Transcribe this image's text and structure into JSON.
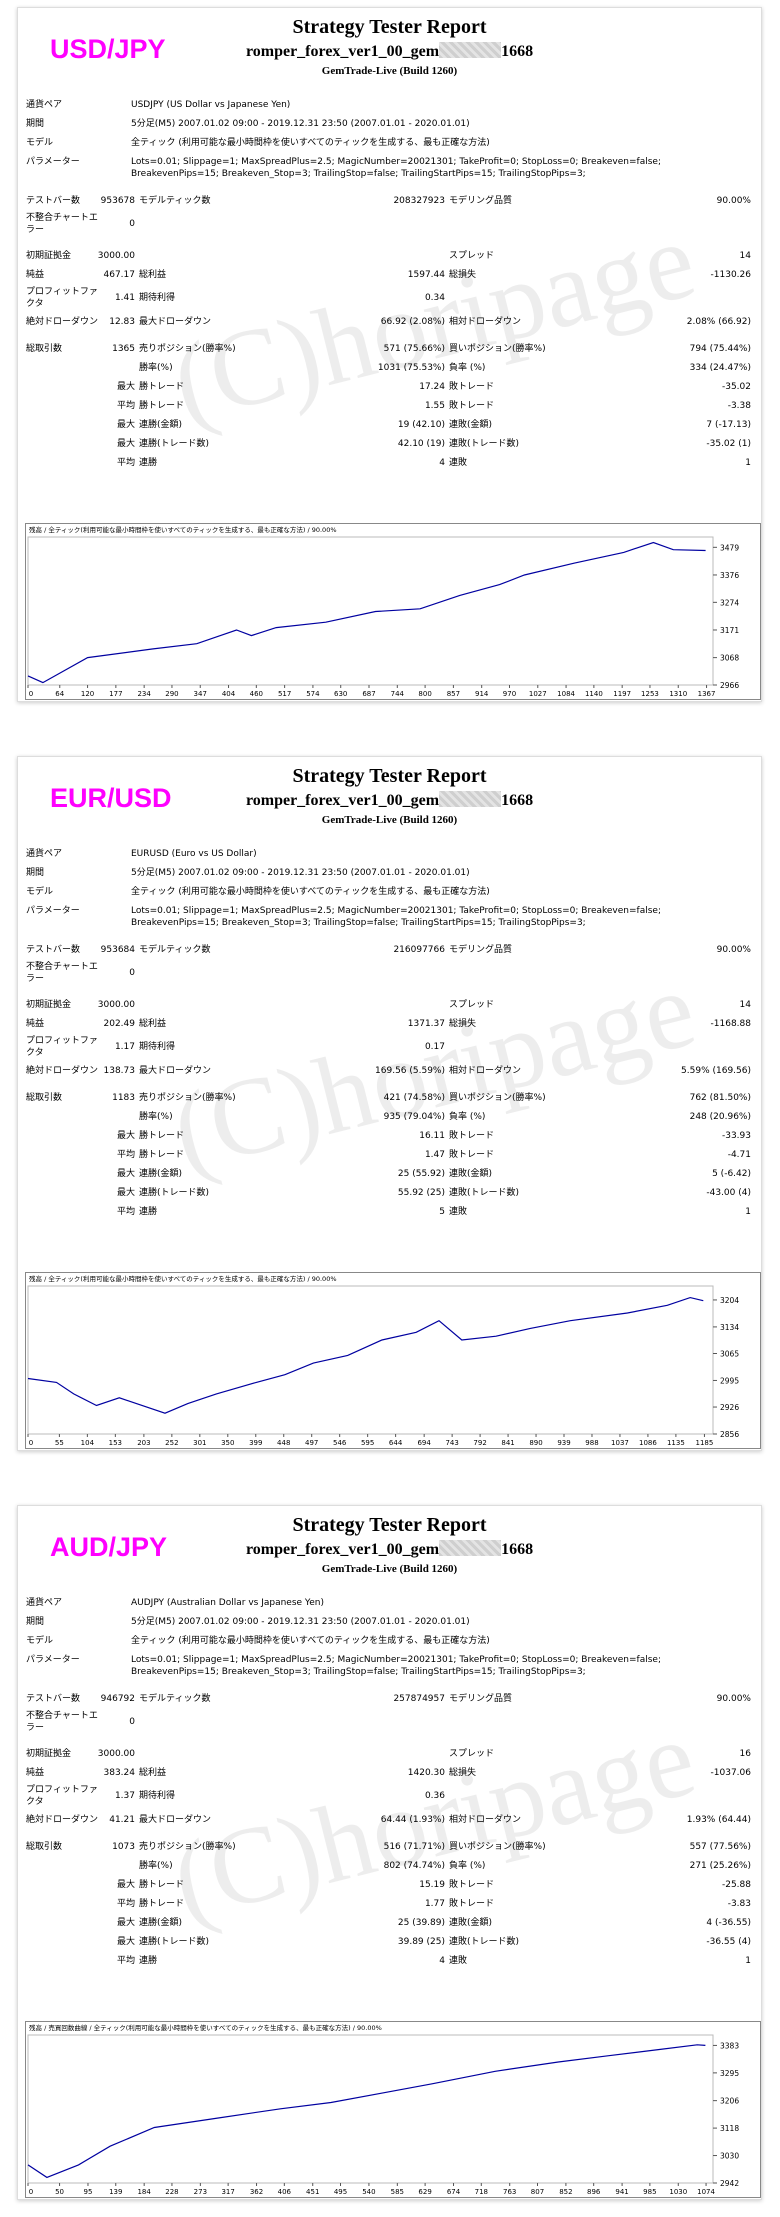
{
  "reports": [
    {
      "pair": "USD/JPY",
      "title": "Strategy Tester Report",
      "name_prefix": "romper_forex_ver1_00_gem",
      "name_suffix": "1668",
      "server": "GemTrade-Live (Build 1260)",
      "watermark": "(C)horipage",
      "info_rows": [
        [
          "通貨ペア",
          "USDJPY (US Dollar vs Japanese Yen)"
        ],
        [
          "期間",
          "5分足(M5) 2007.01.02 09:00 - 2019.12.31 23:50 (2007.01.01 - 2020.01.01)"
        ],
        [
          "モデル",
          "全ティック (利用可能な最小時間枠を使いすべてのティックを生成する、最も正確な方法)"
        ],
        [
          "パラメーター",
          "Lots=0.01; Slippage=1; MaxSpreadPlus=2.5; MagicNumber=20021301; TakeProfit=0; StopLoss=0; Breakeven=false; BreakevenPips=15; Breakeven_Stop=3; TrailingStop=false; TrailingStartPips=15; TrailingStopPips=3;"
        ]
      ],
      "stat_rows": [
        [
          "テストバー数",
          "953678",
          "モデルティック数",
          "208327923",
          "モデリング品質",
          "90.00%"
        ],
        [
          "不整合チャートエラー",
          "0",
          null,
          null,
          null,
          null
        ],
        [
          "初期証拠金",
          "3000.00",
          null,
          null,
          "スプレッド",
          "14"
        ],
        [
          "純益",
          "467.17",
          "総利益",
          "1597.44",
          "総損失",
          "-1130.26"
        ],
        [
          "プロフィットファクタ",
          "1.41",
          "期待利得",
          "0.34",
          null,
          null
        ],
        [
          "絶対ドローダウン",
          "12.83",
          "最大ドローダウン",
          "66.92 (2.08%)",
          "相対ドローダウン",
          "2.08% (66.92)"
        ],
        [
          "総取引数",
          "1365",
          "売りポジション(勝率%)",
          "571 (75.66%)",
          "買いポジション(勝率%)",
          "794 (75.44%)"
        ],
        [
          null,
          null,
          "勝率(%)",
          "1031 (75.53%)",
          "負率 (%)",
          "334 (24.47%)"
        ],
        [
          null,
          "最大",
          "勝トレード",
          "17.24",
          "敗トレード",
          "-35.02"
        ],
        [
          null,
          "平均",
          "勝トレード",
          "1.55",
          "敗トレード",
          "-3.38"
        ],
        [
          null,
          "最大",
          "連勝(金額)",
          "19 (42.10)",
          "連敗(金額)",
          "7 (-17.13)"
        ],
        [
          null,
          "最大",
          "連勝(トレード数)",
          "42.10 (19)",
          "連敗(トレード数)",
          "-35.02 (1)"
        ],
        [
          null,
          "平均",
          "連勝",
          "4",
          "連敗",
          "1"
        ]
      ],
      "chart": {
        "type": "line",
        "legend": "残高 / 全ティック(利用可能な最小時間枠を使いすべてのティックを生成する、最も正確な方法) / 90.00%",
        "color": "#0000a0",
        "x": [
          0,
          30,
          120,
          250,
          340,
          420,
          450,
          500,
          600,
          700,
          790,
          870,
          950,
          1000,
          1100,
          1200,
          1260,
          1300,
          1365
        ],
        "values": [
          3000,
          2975,
          3068,
          3100,
          3120,
          3171,
          3150,
          3180,
          3200,
          3240,
          3250,
          3300,
          3340,
          3376,
          3420,
          3460,
          3497,
          3470,
          3467
        ],
        "xlim": [
          0,
          1380
        ],
        "ylim": [
          2966,
          3510
        ],
        "xticks": [
          0,
          64,
          120,
          177,
          234,
          290,
          347,
          404,
          460,
          517,
          574,
          630,
          687,
          744,
          800,
          857,
          914,
          970,
          1027,
          1084,
          1140,
          1197,
          1253,
          1310,
          1367
        ],
        "yticks": [
          2966,
          3068,
          3171,
          3274,
          3376,
          3479
        ]
      }
    },
    {
      "pair": "EUR/USD",
      "title": "Strategy Tester Report",
      "name_prefix": "romper_forex_ver1_00_gem",
      "name_suffix": "1668",
      "server": "GemTrade-Live (Build 1260)",
      "watermark": "(C)horipage",
      "info_rows": [
        [
          "通貨ペア",
          "EURUSD (Euro vs US Dollar)"
        ],
        [
          "期間",
          "5分足(M5) 2007.01.02 09:00 - 2019.12.31 23:50 (2007.01.01 - 2020.01.01)"
        ],
        [
          "モデル",
          "全ティック (利用可能な最小時間枠を使いすべてのティックを生成する、最も正確な方法)"
        ],
        [
          "パラメーター",
          "Lots=0.01; Slippage=1; MaxSpreadPlus=2.5; MagicNumber=20021301; TakeProfit=0; StopLoss=0; Breakeven=false; BreakevenPips=15; Breakeven_Stop=3; TrailingStop=false; TrailingStartPips=15; TrailingStopPips=3;"
        ]
      ],
      "stat_rows": [
        [
          "テストバー数",
          "953684",
          "モデルティック数",
          "216097766",
          "モデリング品質",
          "90.00%"
        ],
        [
          "不整合チャートエラー",
          "0",
          null,
          null,
          null,
          null
        ],
        [
          "初期証拠金",
          "3000.00",
          null,
          null,
          "スプレッド",
          "14"
        ],
        [
          "純益",
          "202.49",
          "総利益",
          "1371.37",
          "総損失",
          "-1168.88"
        ],
        [
          "プロフィットファクタ",
          "1.17",
          "期待利得",
          "0.17",
          null,
          null
        ],
        [
          "絶対ドローダウン",
          "138.73",
          "最大ドローダウン",
          "169.56 (5.59%)",
          "相対ドローダウン",
          "5.59% (169.56)"
        ],
        [
          "総取引数",
          "1183",
          "売りポジション(勝率%)",
          "421 (74.58%)",
          "買いポジション(勝率%)",
          "762 (81.50%)"
        ],
        [
          null,
          null,
          "勝率(%)",
          "935 (79.04%)",
          "負率 (%)",
          "248 (20.96%)"
        ],
        [
          null,
          "最大",
          "勝トレード",
          "16.11",
          "敗トレード",
          "-33.93"
        ],
        [
          null,
          "平均",
          "勝トレード",
          "1.47",
          "敗トレード",
          "-4.71"
        ],
        [
          null,
          "最大",
          "連勝(金額)",
          "25 (55.92)",
          "連敗(金額)",
          "5 (-6.42)"
        ],
        [
          null,
          "最大",
          "連勝(トレード数)",
          "55.92 (25)",
          "連敗(トレード数)",
          "-43.00 (4)"
        ],
        [
          null,
          "平均",
          "連勝",
          "5",
          "連敗",
          "1"
        ]
      ],
      "chart": {
        "type": "line",
        "legend": "残高 / 全ティック(利用可能な最小時間枠を使いすべてのティックを生成する、最も正確な方法) / 90.00%",
        "color": "#0000a0",
        "x": [
          0,
          50,
          80,
          120,
          160,
          240,
          280,
          330,
          400,
          450,
          500,
          560,
          620,
          680,
          720,
          760,
          820,
          880,
          950,
          1050,
          1120,
          1160,
          1183
        ],
        "values": [
          3000,
          2990,
          2960,
          2930,
          2950,
          2910,
          2935,
          2960,
          2990,
          3010,
          3040,
          3060,
          3100,
          3120,
          3150,
          3100,
          3110,
          3130,
          3150,
          3170,
          3190,
          3210,
          3202
        ],
        "xlim": [
          0,
          1200
        ],
        "ylim": [
          2856,
          3235
        ],
        "xticks": [
          0,
          55,
          104,
          153,
          203,
          252,
          301,
          350,
          399,
          448,
          497,
          546,
          595,
          644,
          694,
          743,
          792,
          841,
          890,
          939,
          988,
          1037,
          1086,
          1135,
          1185
        ],
        "yticks": [
          2856,
          2926,
          2995,
          3065,
          3134,
          3204
        ]
      }
    },
    {
      "pair": "AUD/JPY",
      "title": "Strategy Tester Report",
      "name_prefix": "romper_forex_ver1_00_gem",
      "name_suffix": "1668",
      "server": "GemTrade-Live (Build 1260)",
      "watermark": "(C)horipage",
      "info_rows": [
        [
          "通貨ペア",
          "AUDJPY (Australian Dollar vs Japanese Yen)"
        ],
        [
          "期間",
          "5分足(M5) 2007.01.02 09:00 - 2019.12.31 23:50 (2007.01.01 - 2020.01.01)"
        ],
        [
          "モデル",
          "全ティック (利用可能な最小時間枠を使いすべてのティックを生成する、最も正確な方法)"
        ],
        [
          "パラメーター",
          "Lots=0.01; Slippage=1; MaxSpreadPlus=2.5; MagicNumber=20021301; TakeProfit=0; StopLoss=0; Breakeven=false; BreakevenPips=15; Breakeven_Stop=3; TrailingStop=false; TrailingStartPips=15; TrailingStopPips=3;"
        ]
      ],
      "stat_rows": [
        [
          "テストバー数",
          "946792",
          "モデルティック数",
          "257874957",
          "モデリング品質",
          "90.00%"
        ],
        [
          "不整合チャートエラー",
          "0",
          null,
          null,
          null,
          null
        ],
        [
          "初期証拠金",
          "3000.00",
          null,
          null,
          "スプレッド",
          "16"
        ],
        [
          "純益",
          "383.24",
          "総利益",
          "1420.30",
          "総損失",
          "-1037.06"
        ],
        [
          "プロフィットファクタ",
          "1.37",
          "期待利得",
          "0.36",
          null,
          null
        ],
        [
          "絶対ドローダウン",
          "41.21",
          "最大ドローダウン",
          "64.44 (1.93%)",
          "相対ドローダウン",
          "1.93% (64.44)"
        ],
        [
          "総取引数",
          "1073",
          "売りポジション(勝率%)",
          "516 (71.71%)",
          "買いポジション(勝率%)",
          "557 (77.56%)"
        ],
        [
          null,
          null,
          "勝率(%)",
          "802 (74.74%)",
          "負率 (%)",
          "271 (25.26%)"
        ],
        [
          null,
          "最大",
          "勝トレード",
          "15.19",
          "敗トレード",
          "-25.88"
        ],
        [
          null,
          "平均",
          "勝トレード",
          "1.77",
          "敗トレード",
          "-3.83"
        ],
        [
          null,
          "最大",
          "連勝(金額)",
          "25 (39.89)",
          "連敗(金額)",
          "4 (-36.55)"
        ],
        [
          null,
          "最大",
          "連勝(トレード数)",
          "39.89 (25)",
          "連敗(トレード数)",
          "-36.55 (4)"
        ],
        [
          null,
          "平均",
          "連勝",
          "4",
          "連敗",
          "1"
        ]
      ],
      "chart": {
        "type": "line",
        "legend": "残高 / 売買回数曲線 / 全ティック(利用可能な最小時間枠を使いすべてのティックを生成する、最も正確な方法) / 90.00%",
        "color": "#0000a0",
        "x": [
          0,
          30,
          80,
          130,
          200,
          300,
          400,
          480,
          560,
          640,
          740,
          840,
          920,
          1000,
          1060,
          1073
        ],
        "values": [
          3000,
          2960,
          3000,
          3060,
          3120,
          3150,
          3180,
          3200,
          3230,
          3260,
          3300,
          3330,
          3350,
          3370,
          3385,
          3383
        ],
        "xlim": [
          0,
          1085
        ],
        "ylim": [
          2942,
          3410
        ],
        "xticks": [
          0,
          50,
          95,
          139,
          184,
          228,
          273,
          317,
          362,
          406,
          451,
          495,
          540,
          585,
          629,
          674,
          718,
          763,
          807,
          852,
          896,
          941,
          985,
          1030,
          1074
        ],
        "yticks": [
          2942,
          3030,
          3118,
          3206,
          3295,
          3383
        ]
      }
    }
  ]
}
